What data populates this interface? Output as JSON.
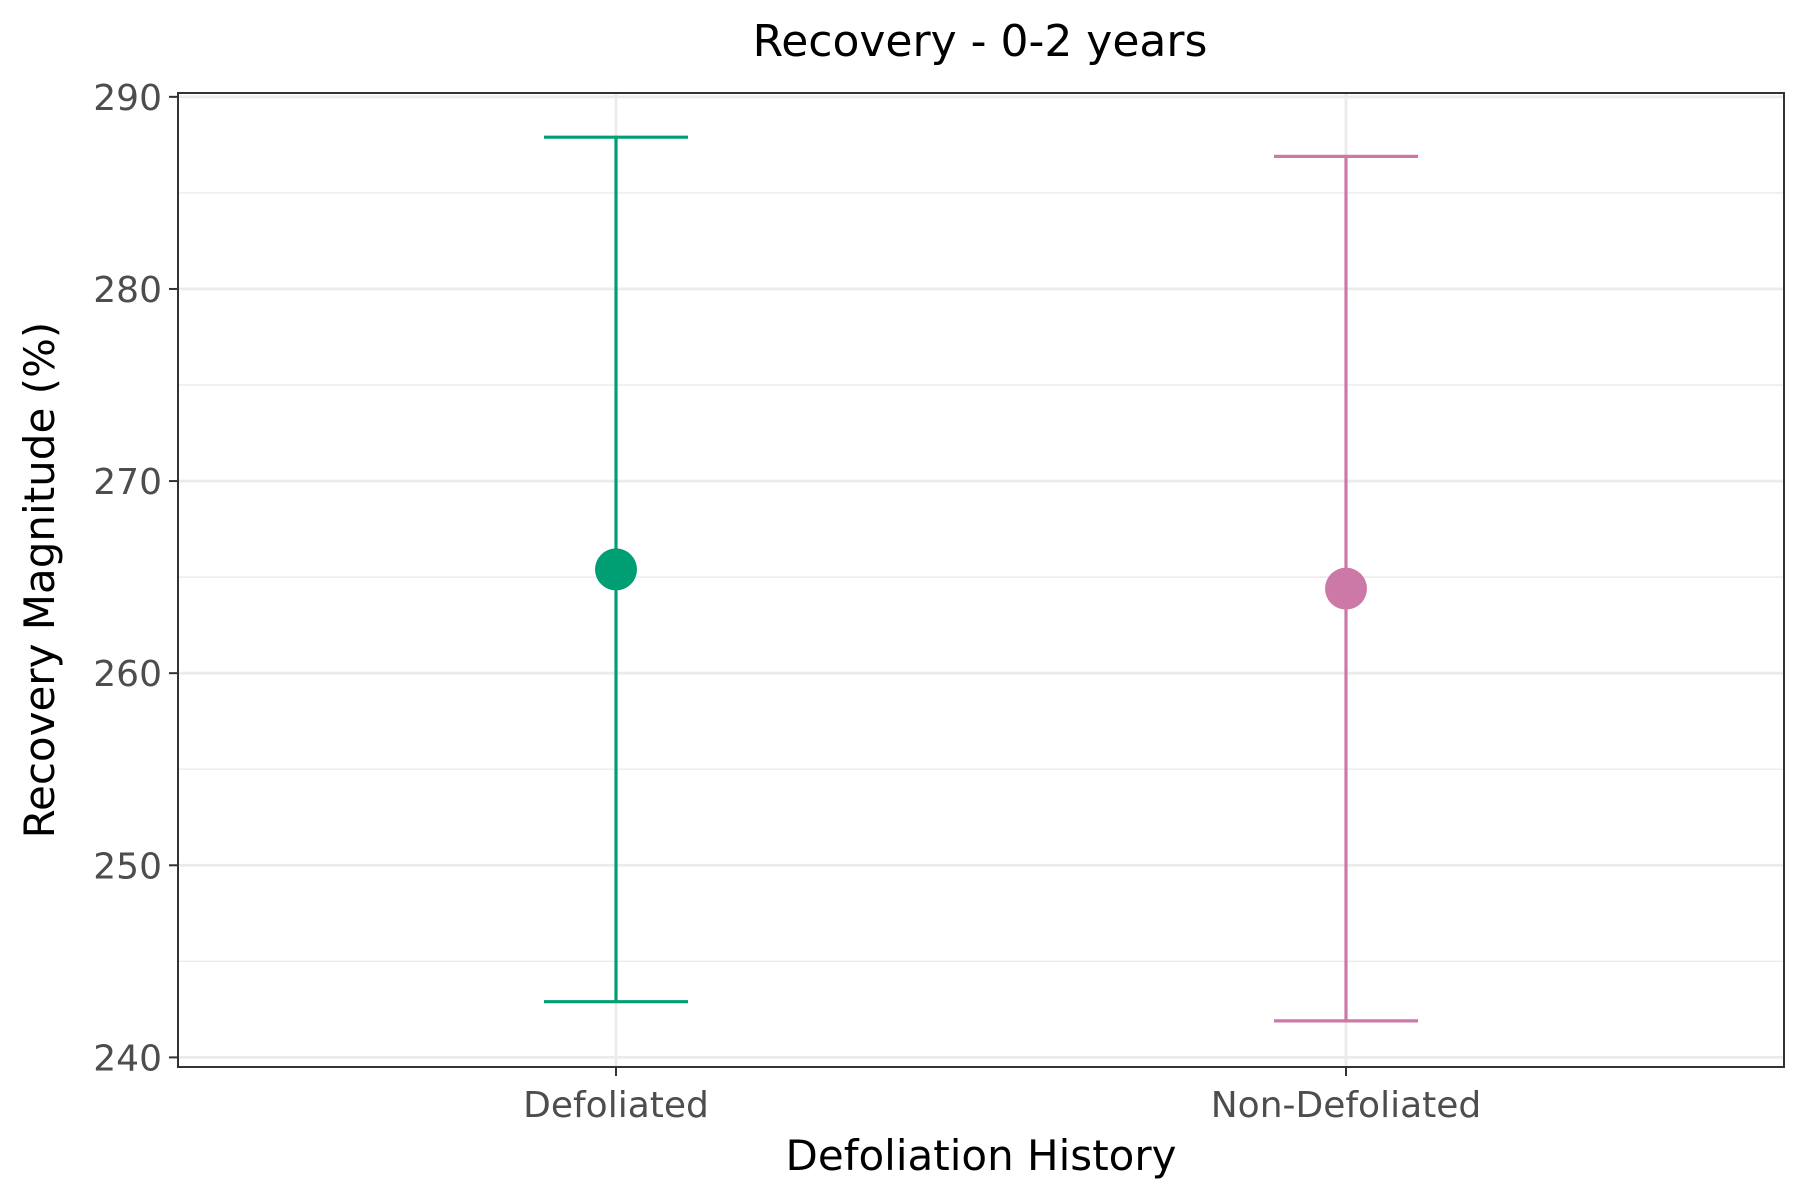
{
  "chart_data": {
    "type": "errorbar",
    "title": "Recovery - 0-2 years",
    "xlabel": "Defoliation History",
    "ylabel": "Recovery Magnitude (%)",
    "ylim": [
      239.5,
      290.2
    ],
    "yticks": [
      240,
      250,
      260,
      270,
      280,
      290
    ],
    "grid": true,
    "legend": "none",
    "categories": [
      "Defoliated",
      "Non-Defoliated"
    ],
    "points": [
      {
        "category": "Defoliated",
        "mean": 265.4,
        "lower": 242.9,
        "upper": 287.9,
        "color": "#009E73"
      },
      {
        "category": "Non-Defoliated",
        "mean": 264.4,
        "lower": 241.9,
        "upper": 286.9,
        "color": "#CC79A7"
      }
    ]
  }
}
